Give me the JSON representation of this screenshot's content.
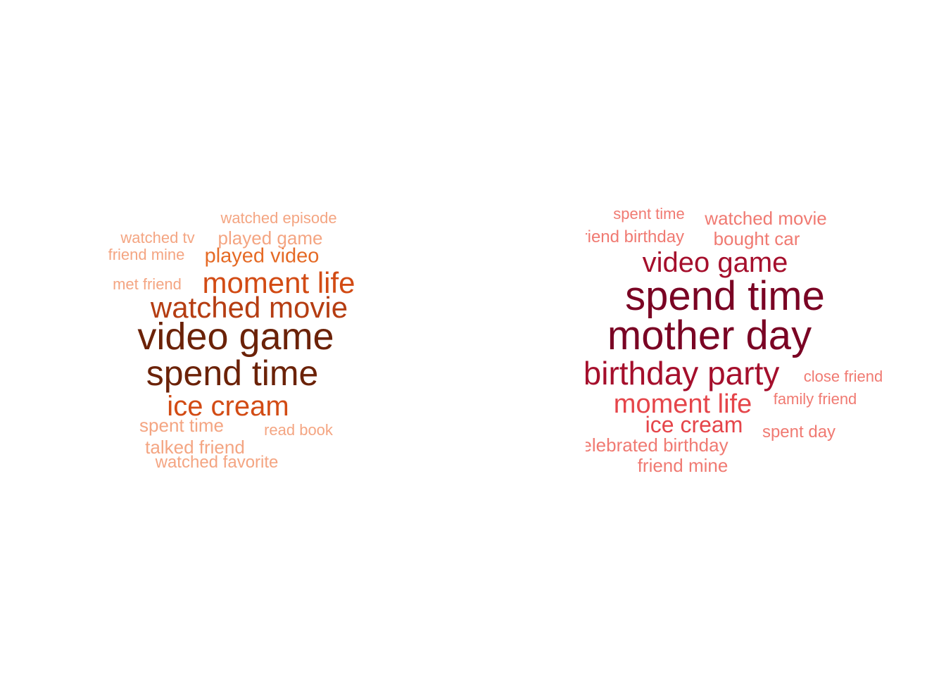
{
  "chart_data": [
    {
      "type": "wordcloud",
      "palette": [
        "#f4a582",
        "#f08a4f",
        "#e56a25",
        "#d24b14",
        "#b53d12",
        "#8c2d0b",
        "#6b2208"
      ],
      "words": [
        {
          "text": "video game",
          "weight": 100
        },
        {
          "text": "spend time",
          "weight": 90
        },
        {
          "text": "watched movie",
          "weight": 70
        },
        {
          "text": "moment life",
          "weight": 68
        },
        {
          "text": "ice cream",
          "weight": 66
        },
        {
          "text": "played video",
          "weight": 45
        },
        {
          "text": "played game",
          "weight": 40
        },
        {
          "text": "watched episode",
          "weight": 30
        },
        {
          "text": "watched tv",
          "weight": 30
        },
        {
          "text": "friend mine",
          "weight": 30
        },
        {
          "text": "met friend",
          "weight": 30
        },
        {
          "text": "spent time",
          "weight": 38
        },
        {
          "text": "read book",
          "weight": 30
        },
        {
          "text": "talked friend",
          "weight": 38
        },
        {
          "text": "watched favorite",
          "weight": 33
        }
      ]
    },
    {
      "type": "wordcloud",
      "palette": [
        "#f4a090",
        "#f07a72",
        "#e5454a",
        "#c81a2c",
        "#a50f2c",
        "#7a0424",
        "#5a0018"
      ],
      "words": [
        {
          "text": "spend time",
          "weight": 100
        },
        {
          "text": "mother day",
          "weight": 100
        },
        {
          "text": "birthday party",
          "weight": 78
        },
        {
          "text": "video game",
          "weight": 68
        },
        {
          "text": "moment life",
          "weight": 66
        },
        {
          "text": "ice cream",
          "weight": 55
        },
        {
          "text": "watched movie",
          "weight": 38
        },
        {
          "text": "bought car",
          "weight": 38
        },
        {
          "text": "spent time",
          "weight": 30
        },
        {
          "text": "friend birthday",
          "weight": 35
        },
        {
          "text": "close friend",
          "weight": 30
        },
        {
          "text": "family friend",
          "weight": 30
        },
        {
          "text": "spent day",
          "weight": 32
        },
        {
          "text": "celebrated birthday",
          "weight": 38
        },
        {
          "text": "friend mine",
          "weight": 35
        }
      ]
    }
  ]
}
